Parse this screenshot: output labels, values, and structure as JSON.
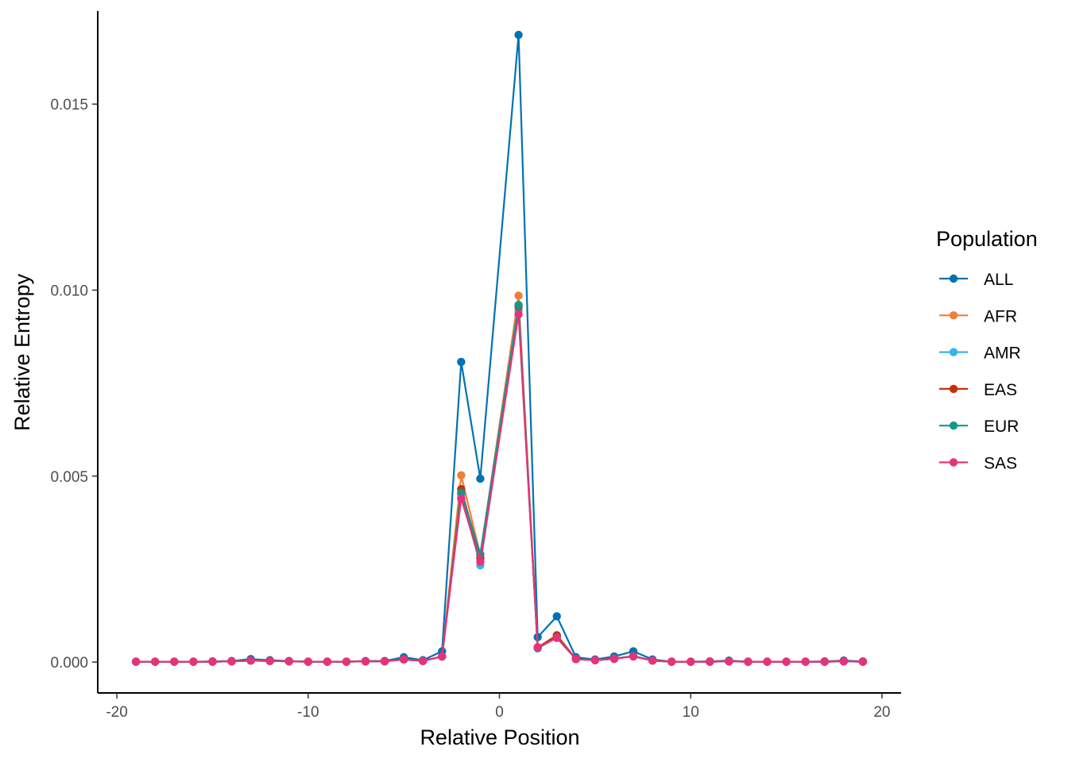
{
  "chart_data": {
    "type": "line",
    "xlabel": "Relative Position",
    "ylabel": "Relative Entropy",
    "xlim": [
      -21,
      21
    ],
    "ylim": [
      -0.00083,
      0.0175
    ],
    "x_ticks": [
      -20,
      -10,
      0,
      10,
      20
    ],
    "x_tick_labels": [
      "-20",
      "-10",
      "0",
      "10",
      "20"
    ],
    "y_ticks": [
      0,
      0.005,
      0.01,
      0.015
    ],
    "y_tick_labels": [
      "0.000",
      "0.005",
      "0.010",
      "0.015"
    ],
    "grid": false,
    "legend": {
      "title": "Population",
      "position": "right"
    },
    "x": [
      -19,
      -18,
      -17,
      -16,
      -15,
      -14,
      -13,
      -12,
      -11,
      -10,
      -9,
      -8,
      -7,
      -6,
      -5,
      -4,
      -3,
      -2,
      -1,
      1,
      2,
      3,
      4,
      5,
      6,
      7,
      8,
      9,
      10,
      11,
      12,
      13,
      14,
      15,
      16,
      17,
      18,
      19
    ],
    "series": [
      {
        "name": "ALL",
        "color": "#0072B2",
        "values": [
          1e-05,
          1e-05,
          1e-05,
          1e-05,
          2e-05,
          3e-05,
          8e-05,
          5e-05,
          3e-05,
          1e-05,
          1e-05,
          1e-05,
          3e-05,
          3e-05,
          0.00013,
          5e-05,
          0.00029,
          0.00807,
          0.00493,
          0.01686,
          0.00067,
          0.00123,
          0.00013,
          7e-05,
          0.00015,
          0.00029,
          7e-05,
          1e-05,
          1e-05,
          2e-05,
          4e-05,
          1e-05,
          1e-05,
          1e-05,
          1e-05,
          2e-05,
          4e-05,
          2e-05
        ]
      },
      {
        "name": "AFR",
        "color": "#F07F3A",
        "values": [
          1e-05,
          1e-05,
          1e-05,
          1e-05,
          1e-05,
          2e-05,
          4e-05,
          3e-05,
          2e-05,
          1e-05,
          1e-05,
          1e-05,
          2e-05,
          2e-05,
          7e-05,
          3e-05,
          0.00015,
          0.00502,
          0.00288,
          0.00985,
          0.0004,
          0.0007,
          8e-05,
          5e-05,
          9e-05,
          0.00016,
          4e-05,
          1e-05,
          1e-05,
          1e-05,
          2e-05,
          1e-05,
          1e-05,
          1e-05,
          1e-05,
          1e-05,
          2e-05,
          1e-05
        ]
      },
      {
        "name": "AMR",
        "color": "#35B6E8",
        "values": [
          1e-05,
          1e-05,
          1e-05,
          1e-05,
          1e-05,
          2e-05,
          4e-05,
          3e-05,
          2e-05,
          1e-05,
          1e-05,
          1e-05,
          2e-05,
          2e-05,
          7e-05,
          3e-05,
          0.00015,
          0.0045,
          0.0026,
          0.00945,
          0.00038,
          0.00068,
          8e-05,
          5e-05,
          9e-05,
          0.00016,
          4e-05,
          1e-05,
          1e-05,
          1e-05,
          2e-05,
          1e-05,
          1e-05,
          1e-05,
          1e-05,
          1e-05,
          2e-05,
          1e-05
        ]
      },
      {
        "name": "EAS",
        "color": "#C4320A",
        "values": [
          1e-05,
          1e-05,
          1e-05,
          1e-05,
          1e-05,
          2e-05,
          4e-05,
          3e-05,
          2e-05,
          1e-05,
          1e-05,
          1e-05,
          2e-05,
          2e-05,
          7e-05,
          3e-05,
          0.00015,
          0.00465,
          0.0028,
          0.00955,
          0.00039,
          0.00072,
          8e-05,
          5e-05,
          9e-05,
          0.00016,
          4e-05,
          1e-05,
          1e-05,
          1e-05,
          2e-05,
          1e-05,
          1e-05,
          1e-05,
          1e-05,
          1e-05,
          2e-05,
          1e-05
        ]
      },
      {
        "name": "EUR",
        "color": "#11998E",
        "values": [
          1e-05,
          1e-05,
          1e-05,
          1e-05,
          1e-05,
          2e-05,
          4e-05,
          3e-05,
          2e-05,
          1e-05,
          1e-05,
          1e-05,
          2e-05,
          2e-05,
          7e-05,
          3e-05,
          0.00015,
          0.00455,
          0.0029,
          0.0096,
          0.00037,
          0.00066,
          8e-05,
          5e-05,
          9e-05,
          0.00016,
          4e-05,
          1e-05,
          1e-05,
          1e-05,
          2e-05,
          1e-05,
          1e-05,
          1e-05,
          1e-05,
          1e-05,
          2e-05,
          1e-05
        ]
      },
      {
        "name": "SAS",
        "color": "#E8317A",
        "values": [
          1e-05,
          1e-05,
          1e-05,
          1e-05,
          1e-05,
          2e-05,
          4e-05,
          3e-05,
          2e-05,
          1e-05,
          1e-05,
          1e-05,
          2e-05,
          2e-05,
          7e-05,
          3e-05,
          0.00015,
          0.0044,
          0.0027,
          0.00935,
          0.00039,
          0.00065,
          8e-05,
          5e-05,
          9e-05,
          0.00015,
          4e-05,
          1e-05,
          1e-05,
          1e-05,
          2e-05,
          1e-05,
          1e-05,
          1e-05,
          1e-05,
          1e-05,
          2e-05,
          1e-05
        ]
      }
    ]
  }
}
